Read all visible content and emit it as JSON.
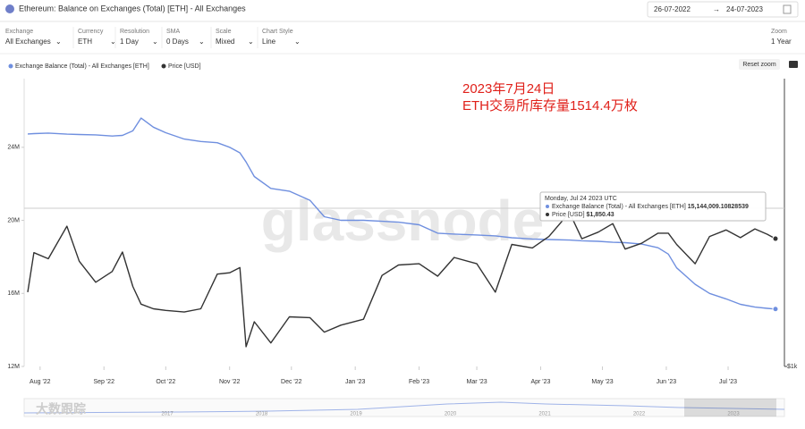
{
  "ui": {
    "title": "Ethereum: Balance on Exchanges (Total) [ETH] - All Exchanges",
    "date_from": "26-07-2022",
    "date_to": "24-07-2023",
    "controls": [
      {
        "label": "Exchange",
        "value": "All Exchanges"
      },
      {
        "label": "Currency",
        "value": "ETH"
      },
      {
        "label": "Resolution",
        "value": "1 Day"
      },
      {
        "label": "SMA",
        "value": "0 Days"
      },
      {
        "label": "Scale",
        "value": "Mixed"
      },
      {
        "label": "Chart Style",
        "value": "Line"
      }
    ],
    "zoom": {
      "label": "Zoom",
      "value": "1 Year"
    },
    "reset": "Reset zoom",
    "watermark": "glassnode",
    "corner_mark": "大数跟踪",
    "navigator_years": [
      "2017",
      "2018",
      "2019",
      "2020",
      "2021",
      "2022",
      "2023"
    ]
  },
  "chart_data": {
    "type": "line",
    "annotations": [
      "2023年7月24日",
      "ETH交易所库存量1514.4万枚"
    ],
    "tooltip": {
      "date": "Monday, Jul 24 2023 UTC",
      "values": [
        "15,144,009.10828539",
        "$1,850.43"
      ]
    },
    "x": [
      "2022-07-26",
      "2022-07-29",
      "2022-08-05",
      "2022-08-14",
      "2022-08-20",
      "2022-08-28",
      "2022-09-05",
      "2022-09-10",
      "2022-09-15",
      "2022-09-19",
      "2022-09-25",
      "2022-10-01",
      "2022-10-10",
      "2022-10-18",
      "2022-10-26",
      "2022-11-01",
      "2022-11-06",
      "2022-11-09",
      "2022-11-13",
      "2022-11-21",
      "2022-11-30",
      "2022-12-10",
      "2022-12-17",
      "2022-12-25",
      "2023-01-05",
      "2023-01-14",
      "2023-01-22",
      "2023-02-01",
      "2023-02-10",
      "2023-02-18",
      "2023-03-01",
      "2023-03-10",
      "2023-03-18",
      "2023-03-28",
      "2023-04-05",
      "2023-04-15",
      "2023-04-21",
      "2023-04-29",
      "2023-05-06",
      "2023-05-12",
      "2023-05-20",
      "2023-05-28",
      "2023-06-02",
      "2023-06-06",
      "2023-06-15",
      "2023-06-22",
      "2023-06-30",
      "2023-07-07",
      "2023-07-14",
      "2023-07-20",
      "2023-07-24"
    ],
    "xlim": [
      "2022-07-26",
      "2023-07-24"
    ],
    "xticks": [
      {
        "value": "2022-08-01",
        "label": "Aug '22"
      },
      {
        "value": "2022-09-01",
        "label": "Sep '22"
      },
      {
        "value": "2022-10-01",
        "label": "Oct '22"
      },
      {
        "value": "2022-11-01",
        "label": "Nov '22"
      },
      {
        "value": "2022-12-01",
        "label": "Dec '22"
      },
      {
        "value": "2023-01-01",
        "label": "Jan '23"
      },
      {
        "value": "2023-02-01",
        "label": "Feb '23"
      },
      {
        "value": "2023-03-01",
        "label": "Mar '23"
      },
      {
        "value": "2023-04-01",
        "label": "Apr '23"
      },
      {
        "value": "2023-05-01",
        "label": "May '23"
      },
      {
        "value": "2023-06-01",
        "label": "Jun '23"
      },
      {
        "value": "2023-07-01",
        "label": "Jul '23"
      }
    ],
    "ylim": [
      12000000,
      27760000
    ],
    "yticks": [
      {
        "value": 12000000,
        "label": "12M"
      },
      {
        "value": 16000000,
        "label": "16M"
      },
      {
        "value": 20000000,
        "label": "20M"
      },
      {
        "value": 24000000,
        "label": "24M"
      }
    ],
    "y2lim": [
      1000,
      4000
    ],
    "y2scale": "log",
    "y2ticks": [
      {
        "value": 1000,
        "label": "$1k"
      }
    ],
    "grid": false,
    "legend": "top-left",
    "series": [
      {
        "name": "Exchange Balance (Total) - All Exchanges [ETH]",
        "color": "#6f8fdf",
        "values": [
          24730000,
          24750000,
          24780000,
          24720000,
          24700000,
          24680000,
          24620000,
          24650000,
          24900000,
          25600000,
          25100000,
          24800000,
          24450000,
          24320000,
          24250000,
          24000000,
          23700000,
          23200000,
          22400000,
          21750000,
          21600000,
          21100000,
          20200000,
          20000000,
          20000000,
          19950000,
          19900000,
          19760000,
          19300000,
          19250000,
          19200000,
          19150000,
          19050000,
          18980000,
          18950000,
          18920000,
          18880000,
          18850000,
          18800000,
          18780000,
          18700000,
          18500000,
          18150000,
          17400000,
          16500000,
          16000000,
          15700000,
          15400000,
          15250000,
          15180000,
          15144009.10828539
        ]
      },
      {
        "name": "Price [USD]",
        "color": "#333333",
        "axis": "y2",
        "values": [
          1430,
          1730,
          1680,
          1965,
          1660,
          1500,
          1580,
          1735,
          1470,
          1350,
          1320,
          1310,
          1300,
          1320,
          1560,
          1570,
          1610,
          1100,
          1240,
          1120,
          1270,
          1265,
          1180,
          1220,
          1255,
          1550,
          1630,
          1640,
          1545,
          1690,
          1640,
          1430,
          1800,
          1770,
          1870,
          2100,
          1850,
          1910,
          1990,
          1760,
          1810,
          1900,
          1900,
          1800,
          1640,
          1870,
          1930,
          1860,
          1940,
          1890,
          1850.43
        ]
      }
    ]
  }
}
